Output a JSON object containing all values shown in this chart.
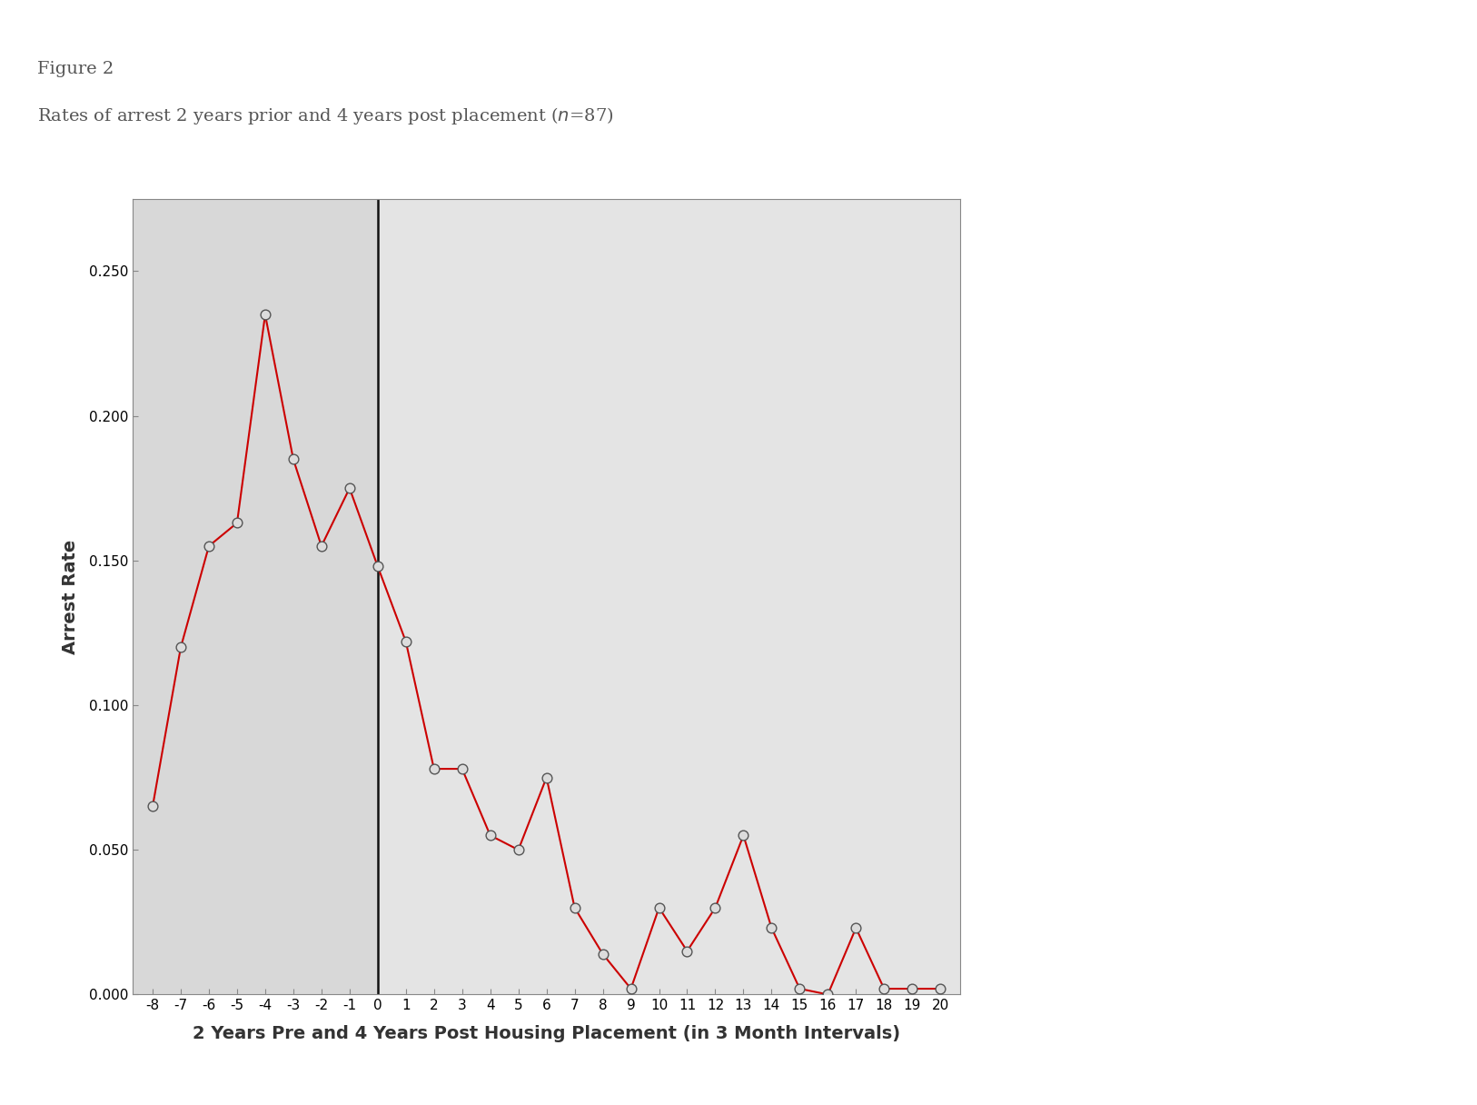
{
  "x_labels": [
    -8,
    -7,
    -6,
    -5,
    -4,
    -3,
    -2,
    -1,
    0,
    1,
    2,
    3,
    4,
    5,
    6,
    7,
    8,
    9,
    10,
    11,
    12,
    13,
    14,
    15,
    16,
    17,
    18,
    19,
    20
  ],
  "y_values": [
    0.065,
    0.12,
    0.155,
    0.163,
    0.235,
    0.185,
    0.155,
    0.175,
    0.148,
    0.122,
    0.078,
    0.078,
    0.055,
    0.05,
    0.075,
    0.03,
    0.014,
    0.002,
    0.03,
    0.015,
    0.03,
    0.055,
    0.023,
    0.002,
    0.0,
    0.023,
    0.002,
    0.002,
    0.002
  ],
  "line_color": "#cc0000",
  "marker_facecolor": "#dcdcdc",
  "marker_edgecolor": "#555555",
  "vline_x": 0,
  "vline_color": "#111111",
  "pre_bg_color": "#d8d8d8",
  "post_bg_color": "#e4e4e4",
  "outer_bg_color": "#ffffff",
  "title_line1": "Figure 2",
  "title_line2_pre": "Rates of arrest 2 years prior and 4 years post placement (",
  "title_line2_n": "n",
  "title_line2_post": "=87)",
  "ylabel": "Arrest Rate",
  "xlabel": "2 Years Pre and 4 Years Post Housing Placement (in 3 Month Intervals)",
  "ylim": [
    0.0,
    0.275
  ],
  "yticks": [
    0.0,
    0.05,
    0.1,
    0.15,
    0.2,
    0.25
  ],
  "ytick_labels": [
    "0.000",
    "0.050",
    "0.100",
    "0.150",
    "0.200",
    "0.250"
  ],
  "title_fontsize": 14,
  "axis_label_fontsize": 14,
  "tick_fontsize": 11,
  "title_color": "#555555"
}
